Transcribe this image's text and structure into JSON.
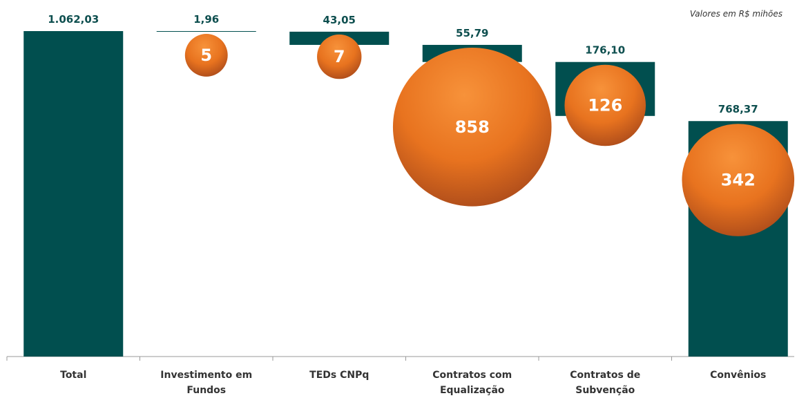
{
  "chart_data": {
    "type": "waterfall",
    "note": "Valores em R$ mihões",
    "categories": [
      "Total",
      "Investimento em Fundos",
      "TEDs CNPq",
      "Contratos com Equalização",
      "Contratos de Subvenção",
      "Convênios"
    ],
    "values": [
      1062.03,
      1.96,
      43.05,
      55.79,
      176.1,
      768.37
    ],
    "value_labels": [
      "1.062,03",
      "1,96",
      "43,05",
      "55,79",
      "176,10",
      "768,37"
    ],
    "color": "#014f4f",
    "bubbles": {
      "color": "#e8731f",
      "values": [
        null,
        5,
        7,
        858,
        126,
        342
      ]
    }
  }
}
